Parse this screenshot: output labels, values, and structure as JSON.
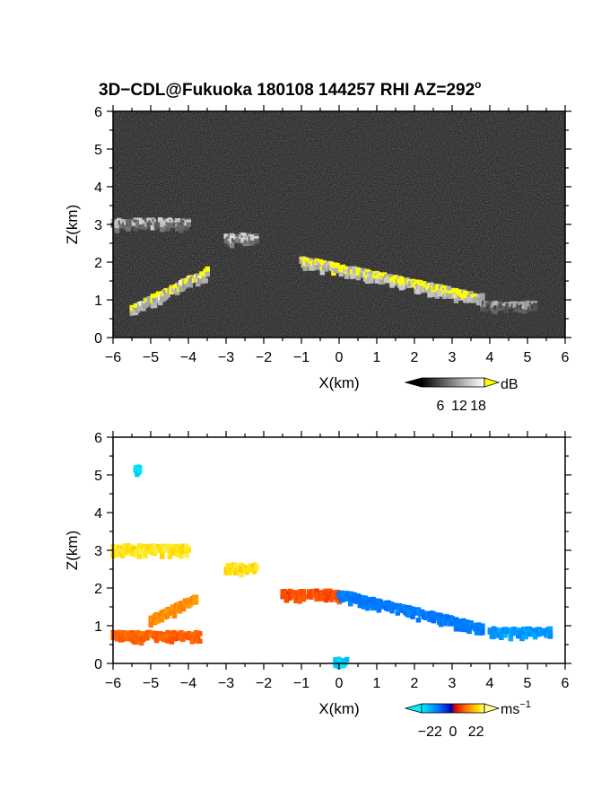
{
  "figure": {
    "title": "3D−CDL@Fukuoka 180108 144257 RHI AZ=292",
    "title_sup": "o"
  },
  "chart_data": [
    {
      "type": "heatmap",
      "panel": "reflectivity",
      "xlabel": "X(km)",
      "ylabel": "Z(km)",
      "xlim": [
        -6,
        6
      ],
      "ylim": [
        0,
        6
      ],
      "x_ticks": [
        "−6",
        "−5",
        "−4",
        "−3",
        "−2",
        "−1",
        "0",
        "1",
        "2",
        "3",
        "4",
        "5",
        "6"
      ],
      "y_ticks": [
        "0",
        "1",
        "2",
        "3",
        "4",
        "5",
        "6"
      ],
      "colorbar": {
        "unit": "dB",
        "ticks": [
          "6",
          "12",
          "18"
        ],
        "range": [
          0,
          20
        ]
      },
      "background": "noise ~0 dB (dark gray)",
      "features": [
        {
          "name": "main layer",
          "x": [
            -1.0,
            3.8
          ],
          "z_top": [
            2.1,
            1.1
          ],
          "value_db": 19
        },
        {
          "name": "upper echo",
          "x": [
            -6.0,
            -4.0
          ],
          "z": 3.1,
          "value_db": 12
        },
        {
          "name": "mid echo",
          "x": [
            -3.0,
            -2.2
          ],
          "z": 2.7,
          "value_db": 13
        },
        {
          "name": "lower echo cluster",
          "x": [
            -5.5,
            -3.5
          ],
          "z": [
            0.8,
            1.8
          ],
          "value_db": 18
        },
        {
          "name": "trailing echo",
          "x": [
            3.8,
            5.2
          ],
          "z": 0.9,
          "value_db": 10
        }
      ]
    },
    {
      "type": "heatmap",
      "panel": "doppler velocity",
      "xlabel": "X(km)",
      "ylabel": "Z(km)",
      "xlim": [
        -6,
        6
      ],
      "ylim": [
        0,
        6
      ],
      "x_ticks": [
        "−6",
        "−5",
        "−4",
        "−3",
        "−2",
        "−1",
        "0",
        "1",
        "2",
        "3",
        "4",
        "5",
        "6"
      ],
      "y_ticks": [
        "0",
        "1",
        "2",
        "3",
        "4",
        "5",
        "6"
      ],
      "colorbar": {
        "unit": "ms",
        "unit_sup": "−1",
        "ticks": [
          "−22",
          "0",
          "22"
        ],
        "range": [
          -30,
          30
        ]
      },
      "features": [
        {
          "name": "upper layer",
          "x": [
            -6.0,
            -4.0
          ],
          "z": 3.1,
          "value_ms": 25
        },
        {
          "name": "mid layer",
          "x": [
            -3.0,
            -2.2
          ],
          "z": 2.6,
          "value_ms": 24
        },
        {
          "name": "main layer west",
          "x": [
            -1.5,
            0.0
          ],
          "z": 1.9,
          "value_ms": 8
        },
        {
          "name": "main layer east",
          "x": [
            0.0,
            3.8
          ],
          "z": [
            1.9,
            1.0
          ],
          "value_ms": -18
        },
        {
          "name": "tail east",
          "x": [
            4.0,
            5.6
          ],
          "z": 0.9,
          "value_ms": -22
        },
        {
          "name": "lower west",
          "x": [
            -6.0,
            -3.7
          ],
          "z": 0.8,
          "value_ms": 10
        },
        {
          "name": "mid west",
          "x": [
            -5.0,
            -3.8
          ],
          "z": [
            1.2,
            1.8
          ],
          "value_ms": 15
        },
        {
          "name": "near radar",
          "x": [
            -0.1,
            0.2
          ],
          "z": 0.1,
          "value_ms": -27
        },
        {
          "name": "isolated point",
          "x": [
            -5.4,
            -5.3
          ],
          "z": 5.2,
          "value_ms": -28
        }
      ]
    }
  ],
  "colors": {
    "velocity_scale": [
      "#00e8f8",
      "#0070ff",
      "#0000c8",
      "#e80000",
      "#ff8000",
      "#ffd800",
      "#ffff80"
    ],
    "reflectivity_scale": [
      "#101010",
      "#505050",
      "#a0a0a0",
      "#e8e8e8",
      "#ffff00"
    ]
  }
}
